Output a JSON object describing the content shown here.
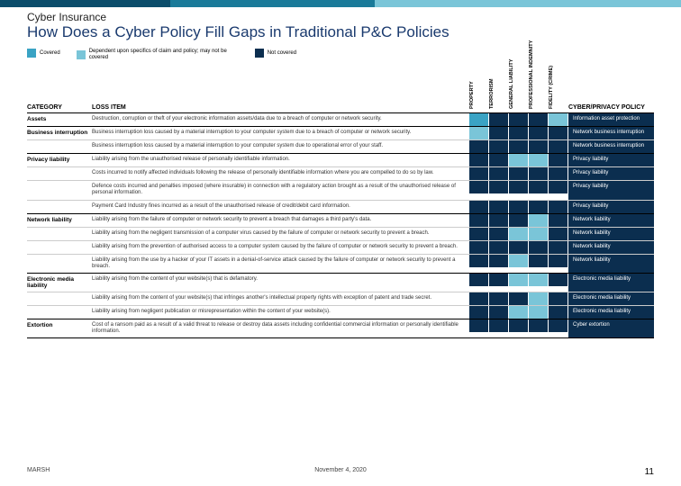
{
  "colors": {
    "stripe_dark": "#0b4d6b",
    "stripe_mid": "#1a7a99",
    "stripe_light": "#7ac5d8",
    "title": "#1a3a6e",
    "covered": "#3aa3c4",
    "depends": "#7ac5d8",
    "notcovered": "#0b2e4f",
    "cyber_bg": "#0b2e4f"
  },
  "header": {
    "subtitle": "Cyber Insurance",
    "title": "How Does a Cyber Policy Fill Gaps in Traditional P&C Policies"
  },
  "legend": [
    {
      "key": "covered",
      "label": "Covered"
    },
    {
      "key": "depends",
      "label": "Dependent upon specifics of claim and policy; may not be covered"
    },
    {
      "key": "notcovered",
      "label": "Not covered"
    }
  ],
  "columns": {
    "category": "CATEGORY",
    "loss_item": "LOSS ITEM",
    "policies": [
      "PROPERTY",
      "TERRORISM",
      "GENERAL LIABILITY",
      "PROFESSIONAL INDEMNITY",
      "FIDELITY (CRIME)"
    ],
    "cyber": "CYBER/PRIVACY POLICY"
  },
  "rows": [
    {
      "category": "Assets",
      "loss": "Destruction, corruption or theft of your electronic information assets/data due to a breach of computer or network security.",
      "cov": [
        "covered",
        "notcovered",
        "notcovered",
        "notcovered",
        "depends"
      ],
      "cyber": "Information asset protection",
      "group_last": true
    },
    {
      "category": "Business interruption",
      "loss": "Business interruption loss caused by a material interruption to your computer system due to a breach of computer or network security.",
      "cov": [
        "depends",
        "notcovered",
        "notcovered",
        "notcovered",
        "notcovered"
      ],
      "cyber": "Network business interruption",
      "group_last": false
    },
    {
      "category": "",
      "loss": "Business interruption loss caused by a material interruption to your computer system due to operational error of your staff.",
      "cov": [
        "notcovered",
        "notcovered",
        "notcovered",
        "notcovered",
        "notcovered"
      ],
      "cyber": "Network business interruption",
      "group_last": true
    },
    {
      "category": "Privacy liability",
      "loss": "Liability arising from the unauthorised release of personally identifiable information.",
      "cov": [
        "notcovered",
        "notcovered",
        "depends",
        "depends",
        "notcovered"
      ],
      "cyber": "Privacy liability",
      "group_last": false
    },
    {
      "category": "",
      "loss": "Costs incurred to notify affected individuals following the release of personally identifiable information where you are compelled to do so by law.",
      "cov": [
        "notcovered",
        "notcovered",
        "notcovered",
        "notcovered",
        "notcovered"
      ],
      "cyber": "Privacy liability",
      "group_last": false
    },
    {
      "category": "",
      "loss": "Defence costs incurred and penalties imposed (where insurable) in connection with a regulatory action brought as a result of the unauthorised release of personal information.",
      "cov": [
        "notcovered",
        "notcovered",
        "notcovered",
        "notcovered",
        "notcovered"
      ],
      "cyber": "Privacy liability",
      "group_last": false
    },
    {
      "category": "",
      "loss": "Payment Card Industry fines incurred as a result of the unauthorised release of credit/debit card information.",
      "cov": [
        "notcovered",
        "notcovered",
        "notcovered",
        "notcovered",
        "notcovered"
      ],
      "cyber": "Privacy liability",
      "group_last": true
    },
    {
      "category": "Network liability",
      "loss": "Liability arising from the failure of computer or network security to prevent a breach that damages a third party's data.",
      "cov": [
        "notcovered",
        "notcovered",
        "notcovered",
        "depends",
        "notcovered"
      ],
      "cyber": "Network liability",
      "group_last": false
    },
    {
      "category": "",
      "loss": "Liability arising from the negligent transmission of a computer virus caused by the failure of computer or network security to prevent a breach.",
      "cov": [
        "notcovered",
        "notcovered",
        "depends",
        "depends",
        "notcovered"
      ],
      "cyber": "Network liability",
      "group_last": false
    },
    {
      "category": "",
      "loss": "Liability arising from the prevention of authorised access to a computer system caused by the failure of computer or network security to prevent a breach.",
      "cov": [
        "notcovered",
        "notcovered",
        "notcovered",
        "notcovered",
        "notcovered"
      ],
      "cyber": "Network liability",
      "group_last": false
    },
    {
      "category": "",
      "loss": "Liability arising from the use by a hacker of your IT assets in a denial-of-service attack caused by the failure of computer or network security to prevent a breach.",
      "cov": [
        "notcovered",
        "notcovered",
        "depends",
        "notcovered",
        "notcovered"
      ],
      "cyber": "Network liability",
      "group_last": true
    },
    {
      "category": "Electronic media liability",
      "loss": "Liability arising from the content of your website(s) that is defamatory.",
      "cov": [
        "notcovered",
        "notcovered",
        "depends",
        "depends",
        "notcovered"
      ],
      "cyber": "Electronic media liability",
      "group_last": false
    },
    {
      "category": "",
      "loss": "Liability arising from the content of your website(s) that infringes another's intellectual property rights with exception of patent and trade secret.",
      "cov": [
        "notcovered",
        "notcovered",
        "notcovered",
        "depends",
        "notcovered"
      ],
      "cyber": "Electronic media liability",
      "group_last": false
    },
    {
      "category": "",
      "loss": "Liability arising from negligent publication or misrepresentation within the content of your website(s).",
      "cov": [
        "notcovered",
        "notcovered",
        "depends",
        "depends",
        "notcovered"
      ],
      "cyber": "Electronic media liability",
      "group_last": true
    },
    {
      "category": "Extortion",
      "loss": "Cost of a ransom paid as a result of a valid threat to release or destroy data assets including confidential commercial information or personally identifiable information.",
      "cov": [
        "notcovered",
        "notcovered",
        "notcovered",
        "notcovered",
        "notcovered"
      ],
      "cyber": "Cyber extortion",
      "group_last": true
    }
  ],
  "footer": {
    "brand": "MARSH",
    "date": "November 4, 2020",
    "page": "11"
  }
}
